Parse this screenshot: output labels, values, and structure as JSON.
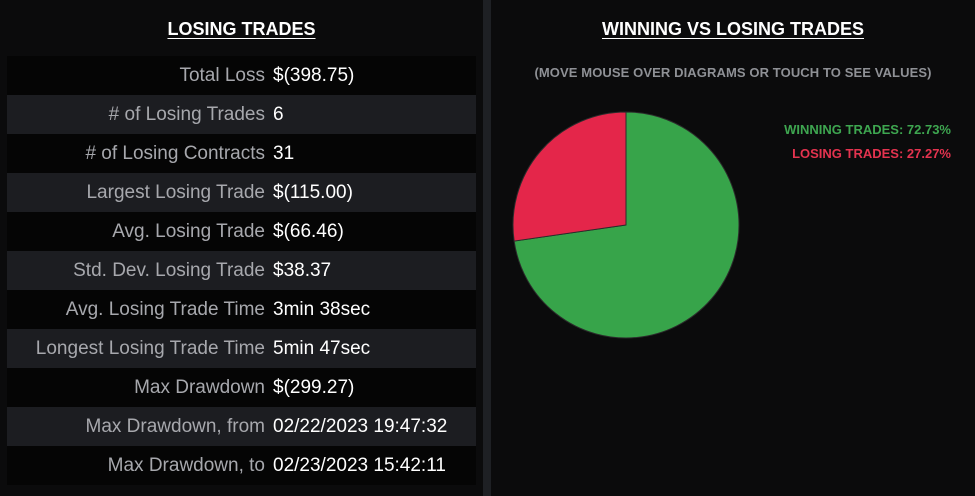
{
  "left_panel": {
    "title": "LOSING TRADES",
    "stats": [
      {
        "label": "Total Loss",
        "value": "$(398.75)"
      },
      {
        "label": "# of Losing Trades",
        "value": "6"
      },
      {
        "label": "# of Losing Contracts",
        "value": "31"
      },
      {
        "label": "Largest Losing Trade",
        "value": "$(115.00)"
      },
      {
        "label": "Avg. Losing Trade",
        "value": "$(66.46)"
      },
      {
        "label": "Std. Dev. Losing Trade",
        "value": "$38.37"
      },
      {
        "label": "Avg. Losing Trade Time",
        "value": "3min 38sec"
      },
      {
        "label": "Longest Losing Trade Time",
        "value": "5min 47sec"
      },
      {
        "label": "Max Drawdown",
        "value": "$(299.27)"
      },
      {
        "label": "Max Drawdown, from",
        "value": "02/22/2023 19:47:32"
      },
      {
        "label": "Max Drawdown, to",
        "value": "02/23/2023 15:42:11"
      }
    ]
  },
  "right_panel": {
    "title": "WINNING VS LOSING TRADES",
    "subtitle": "(MOVE MOUSE OVER DIAGRAMS OR TOUCH TO SEE VALUES)",
    "legend": {
      "winning": "WINNING TRADES: 72.73%",
      "losing": "LOSING TRADES: 27.27%"
    }
  },
  "chart_data": {
    "type": "pie",
    "slices": [
      {
        "label": "WINNING TRADES",
        "value": 72.73,
        "color": "#37a44a"
      },
      {
        "label": "LOSING TRADES",
        "value": 27.27,
        "color": "#e4264a"
      }
    ],
    "start_angle_deg": 0,
    "direction": "clockwise",
    "legend_position": "top-right"
  }
}
